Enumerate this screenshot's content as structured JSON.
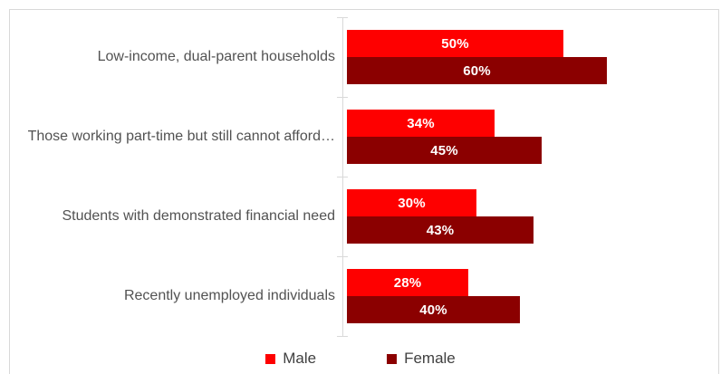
{
  "chart_data": {
    "type": "bar",
    "orientation": "horizontal",
    "title": "",
    "categories": [
      "Low-income, dual-parent households",
      "Those working part-time but still cannot afford…",
      "Students with demonstrated financial need",
      "Recently unemployed individuals"
    ],
    "series": [
      {
        "name": "Male",
        "color": "#fe0000",
        "values": [
          50,
          34,
          30,
          28
        ],
        "labels": [
          "50%",
          "34%",
          "30%",
          "28%"
        ]
      },
      {
        "name": "Female",
        "color": "#8b0000",
        "values": [
          60,
          45,
          43,
          40
        ],
        "labels": [
          "60%",
          "45%",
          "43%",
          "40%"
        ]
      }
    ],
    "value_axis": {
      "min": 0,
      "max": 83,
      "visible": false
    },
    "grid": false,
    "legend_position": "bottom",
    "data_label_color": "#ffffff"
  },
  "colors": {
    "axis_line": "#d9d9d9",
    "chart_border": "#d9d9d9",
    "category_text": "#525252",
    "legend_text": "#404040"
  }
}
